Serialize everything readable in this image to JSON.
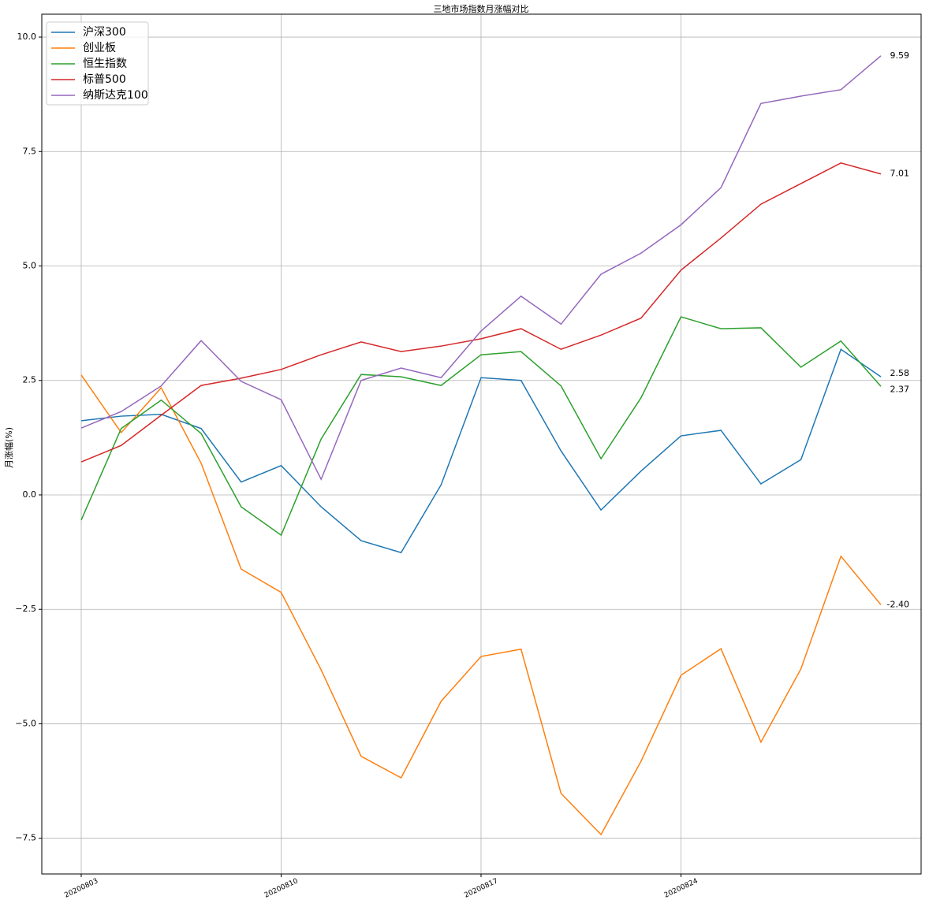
{
  "chart_data": {
    "type": "line",
    "title": "三地市场指数月涨幅对比",
    "y_label": "月涨幅(%)",
    "categories": [
      "20200803",
      null,
      null,
      null,
      null,
      "20200810",
      null,
      null,
      null,
      null,
      "20200817",
      null,
      null,
      null,
      null,
      "20200824",
      null,
      null,
      null,
      null,
      null
    ],
    "ylim": [
      -8.28,
      10.5
    ],
    "yticks": [
      {
        "value": -7.5,
        "label": "−7.5"
      },
      {
        "value": -5,
        "label": "−5.0"
      },
      {
        "value": -2.5,
        "label": "−2.5"
      },
      {
        "value": 0,
        "label": "0.0"
      },
      {
        "value": 2.5,
        "label": "2.5"
      },
      {
        "value": 5,
        "label": "5.0"
      },
      {
        "value": 7.5,
        "label": "7.5"
      },
      {
        "value": 10,
        "label": "10.0"
      }
    ],
    "grid": true,
    "legend": "upper left",
    "series": [
      {
        "name": "沪深300",
        "color": "#1f77b4",
        "values": [
          1.62,
          1.72,
          1.76,
          1.45,
          0.28,
          0.64,
          -0.26,
          -1.0,
          -1.26,
          0.22,
          2.56,
          2.5,
          0.96,
          -0.33,
          0.52,
          1.29,
          1.41,
          0.24,
          0.77,
          3.18,
          2.58
        ],
        "value_labels": [
          null,
          null,
          null,
          null,
          null,
          null,
          null,
          null,
          null,
          null,
          null,
          null,
          null,
          null,
          null,
          null,
          null,
          null,
          null,
          null,
          "2.58"
        ]
      },
      {
        "name": "创业板",
        "color": "#ff7f0e",
        "values": [
          2.62,
          1.36,
          2.34,
          0.69,
          -1.62,
          -2.13,
          -3.82,
          -5.71,
          -6.18,
          -4.51,
          -3.53,
          -3.37,
          -6.52,
          -7.42,
          -5.82,
          -3.94,
          -3.36,
          -5.4,
          -3.8,
          -1.34,
          -2.4
        ],
        "value_labels": [
          null,
          null,
          null,
          null,
          null,
          null,
          null,
          null,
          null,
          null,
          null,
          null,
          null,
          null,
          null,
          null,
          null,
          null,
          null,
          null,
          "-2.40"
        ]
      },
      {
        "name": "恒生指数",
        "color": "#2ca02c",
        "values": [
          -0.55,
          1.45,
          2.07,
          1.34,
          -0.26,
          -0.88,
          1.22,
          2.63,
          2.58,
          2.39,
          3.06,
          3.13,
          2.38,
          0.79,
          2.12,
          3.89,
          3.63,
          3.65,
          2.79,
          3.36,
          2.37
        ],
        "value_labels": [
          null,
          null,
          null,
          null,
          null,
          null,
          null,
          null,
          null,
          null,
          null,
          null,
          null,
          null,
          null,
          null,
          null,
          null,
          null,
          null,
          "2.37"
        ]
      },
      {
        "name": "标普500",
        "color": "#d62728",
        "values": [
          0.72,
          1.08,
          1.74,
          2.39,
          2.55,
          2.74,
          3.06,
          3.34,
          3.13,
          3.25,
          3.41,
          3.63,
          3.18,
          3.49,
          3.86,
          4.91,
          5.61,
          6.35,
          6.8,
          7.25,
          7.01
        ],
        "value_labels": [
          null,
          null,
          null,
          null,
          null,
          null,
          null,
          null,
          null,
          null,
          null,
          null,
          null,
          null,
          null,
          null,
          null,
          null,
          null,
          null,
          "7.01"
        ]
      },
      {
        "name": "纳斯达克100",
        "color": "#9467bd",
        "values": [
          1.46,
          1.82,
          2.38,
          3.37,
          2.48,
          2.08,
          0.34,
          2.5,
          2.77,
          2.56,
          3.58,
          4.34,
          3.73,
          4.82,
          5.28,
          5.9,
          6.71,
          8.55,
          8.71,
          8.85,
          9.59
        ],
        "value_labels": [
          null,
          null,
          null,
          null,
          null,
          null,
          null,
          null,
          null,
          null,
          null,
          null,
          null,
          null,
          null,
          null,
          null,
          null,
          null,
          null,
          "9.59"
        ]
      }
    ]
  }
}
